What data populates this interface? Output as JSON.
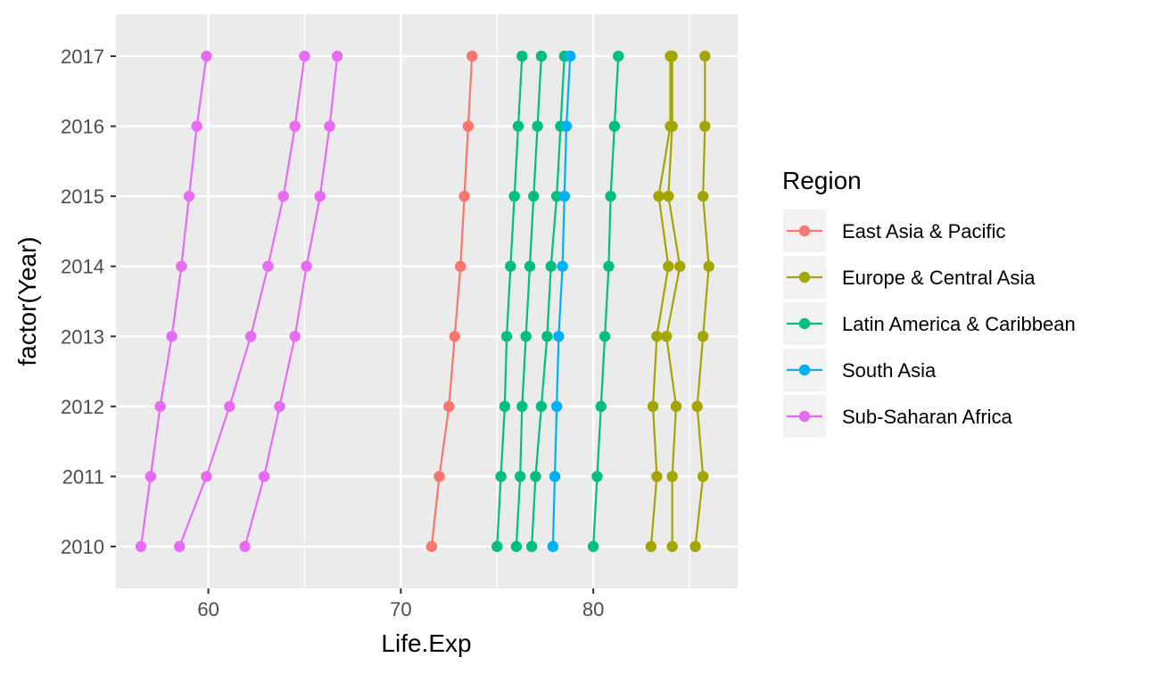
{
  "chart_data": {
    "type": "line",
    "xlabel": "Life.Exp",
    "ylabel": "factor(Year)",
    "x_ticks": [
      60,
      70,
      80
    ],
    "xlim": [
      55.2,
      87.5
    ],
    "categories": [
      "2010",
      "2011",
      "2012",
      "2013",
      "2014",
      "2015",
      "2016",
      "2017"
    ],
    "grid": true,
    "legend": {
      "title": "Region",
      "position": "right"
    },
    "series": [
      {
        "name": "East Asia & Pacific",
        "color": "#F8766D",
        "lines": [
          [
            71.6,
            72.0,
            72.5,
            72.8,
            73.1,
            73.3,
            73.5,
            73.7
          ]
        ]
      },
      {
        "name": "Europe & Central Asia",
        "color": "#A3A500",
        "lines": [
          [
            83.0,
            83.3,
            83.1,
            83.3,
            83.9,
            83.4,
            84.0,
            84.0
          ],
          [
            84.1,
            84.1,
            84.3,
            83.8,
            84.5,
            83.9,
            84.1,
            84.1
          ],
          [
            85.3,
            85.7,
            85.4,
            85.7,
            86.0,
            85.7,
            85.8,
            85.8
          ]
        ]
      },
      {
        "name": "Latin America & Caribbean",
        "color": "#00BF7D",
        "lines": [
          [
            75.0,
            75.2,
            75.4,
            75.5,
            75.7,
            75.9,
            76.1,
            76.3
          ],
          [
            76.0,
            76.2,
            76.3,
            76.5,
            76.7,
            76.9,
            77.1,
            77.3
          ],
          [
            76.8,
            77.0,
            77.3,
            77.6,
            77.8,
            78.1,
            78.3,
            78.5
          ],
          [
            80.0,
            80.2,
            80.4,
            80.6,
            80.8,
            80.9,
            81.1,
            81.3
          ]
        ]
      },
      {
        "name": "South Asia",
        "color": "#00B0F6",
        "lines": [
          [
            77.9,
            78.0,
            78.1,
            78.2,
            78.4,
            78.5,
            78.6,
            78.8
          ]
        ]
      },
      {
        "name": "Sub-Saharan Africa",
        "color": "#E76BF3",
        "lines": [
          [
            56.5,
            57.0,
            57.5,
            58.1,
            58.6,
            59.0,
            59.4,
            59.9
          ],
          [
            58.5,
            59.9,
            61.1,
            62.2,
            63.1,
            63.9,
            64.5,
            65.0
          ],
          [
            61.9,
            62.9,
            63.7,
            64.5,
            65.1,
            65.8,
            66.3,
            66.7
          ]
        ]
      }
    ]
  }
}
